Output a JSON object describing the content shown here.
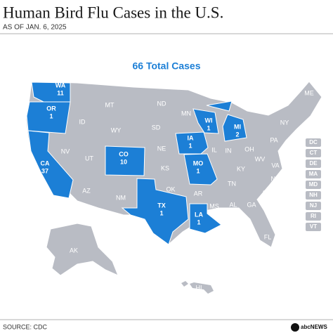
{
  "header": {
    "title": "Human Bird Flu Cases in the U.S.",
    "subtitle": "AS OF JAN. 6, 2025"
  },
  "map": {
    "total_label": "66 Total Cases",
    "highlight_color": "#1c7fd6",
    "base_color": "#b9bcc4",
    "states": [
      {
        "abbr": "WA",
        "cases": 11
      },
      {
        "abbr": "OR",
        "cases": 1
      },
      {
        "abbr": "CA",
        "cases": 37
      },
      {
        "abbr": "CO",
        "cases": 10
      },
      {
        "abbr": "TX",
        "cases": 1
      },
      {
        "abbr": "LA",
        "cases": 1
      },
      {
        "abbr": "IA",
        "cases": 1
      },
      {
        "abbr": "MO",
        "cases": 1
      },
      {
        "abbr": "WI",
        "cases": 1
      },
      {
        "abbr": "MI",
        "cases": 2
      },
      {
        "abbr": "MT"
      },
      {
        "abbr": "ND"
      },
      {
        "abbr": "MN"
      },
      {
        "abbr": "ID"
      },
      {
        "abbr": "WY"
      },
      {
        "abbr": "SD"
      },
      {
        "abbr": "NV"
      },
      {
        "abbr": "UT"
      },
      {
        "abbr": "NE"
      },
      {
        "abbr": "KS"
      },
      {
        "abbr": "AZ"
      },
      {
        "abbr": "NM"
      },
      {
        "abbr": "OK"
      },
      {
        "abbr": "AR"
      },
      {
        "abbr": "IL"
      },
      {
        "abbr": "IN"
      },
      {
        "abbr": "OH"
      },
      {
        "abbr": "KY"
      },
      {
        "abbr": "TN"
      },
      {
        "abbr": "MS"
      },
      {
        "abbr": "AL"
      },
      {
        "abbr": "GA"
      },
      {
        "abbr": "FL"
      },
      {
        "abbr": "SC"
      },
      {
        "abbr": "NC"
      },
      {
        "abbr": "VA"
      },
      {
        "abbr": "WV"
      },
      {
        "abbr": "PA"
      },
      {
        "abbr": "NY"
      },
      {
        "abbr": "ME"
      },
      {
        "abbr": "AK"
      },
      {
        "abbr": "HI"
      }
    ],
    "small_states": [
      "DC",
      "CT",
      "DE",
      "MA",
      "MD",
      "NH",
      "NJ",
      "RI",
      "VT"
    ]
  },
  "footer": {
    "source": "SOURCE: CDC",
    "brand": "abcNEWS"
  }
}
